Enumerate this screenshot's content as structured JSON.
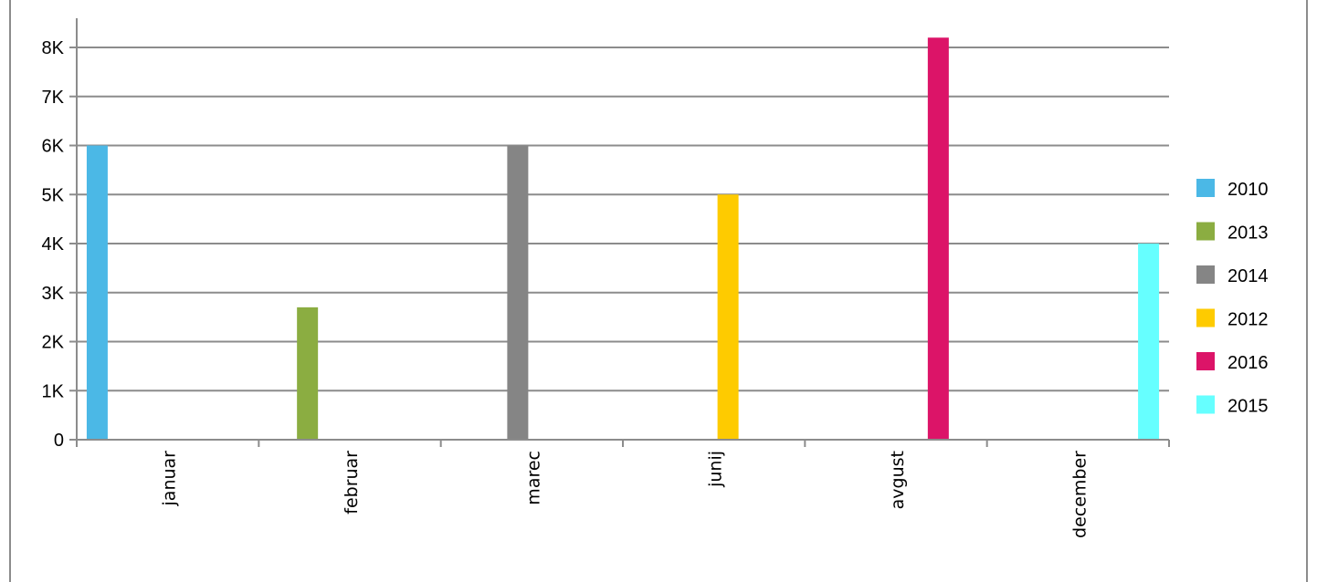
{
  "chart_data": {
    "type": "bar",
    "categories": [
      "januar",
      "februar",
      "marec",
      "junij",
      "avgust",
      "december"
    ],
    "series": [
      {
        "name": "2010",
        "color": "#4BB8E6",
        "values": [
          6000,
          null,
          null,
          null,
          null,
          null
        ]
      },
      {
        "name": "2013",
        "color": "#8BAD41",
        "values": [
          null,
          2700,
          null,
          null,
          null,
          null
        ]
      },
      {
        "name": "2014",
        "color": "#858585",
        "values": [
          null,
          null,
          6000,
          null,
          null,
          null
        ]
      },
      {
        "name": "2012",
        "color": "#FECB00",
        "values": [
          null,
          null,
          null,
          5000,
          null,
          null
        ]
      },
      {
        "name": "2016",
        "color": "#DC1468",
        "values": [
          null,
          null,
          null,
          null,
          8200,
          null
        ]
      },
      {
        "name": "2015",
        "color": "#66FFFF",
        "values": [
          null,
          null,
          null,
          null,
          null,
          4000
        ]
      }
    ],
    "ylim": [
      0,
      8000
    ],
    "yticks": [
      0,
      1000,
      2000,
      3000,
      4000,
      5000,
      6000,
      7000,
      8000
    ],
    "ytick_labels": [
      "0",
      "1K",
      "2K",
      "3K",
      "4K",
      "5K",
      "6K",
      "7K",
      "8K"
    ],
    "grid": true,
    "legend_position": "right",
    "title": "",
    "xlabel": "",
    "ylabel": ""
  }
}
